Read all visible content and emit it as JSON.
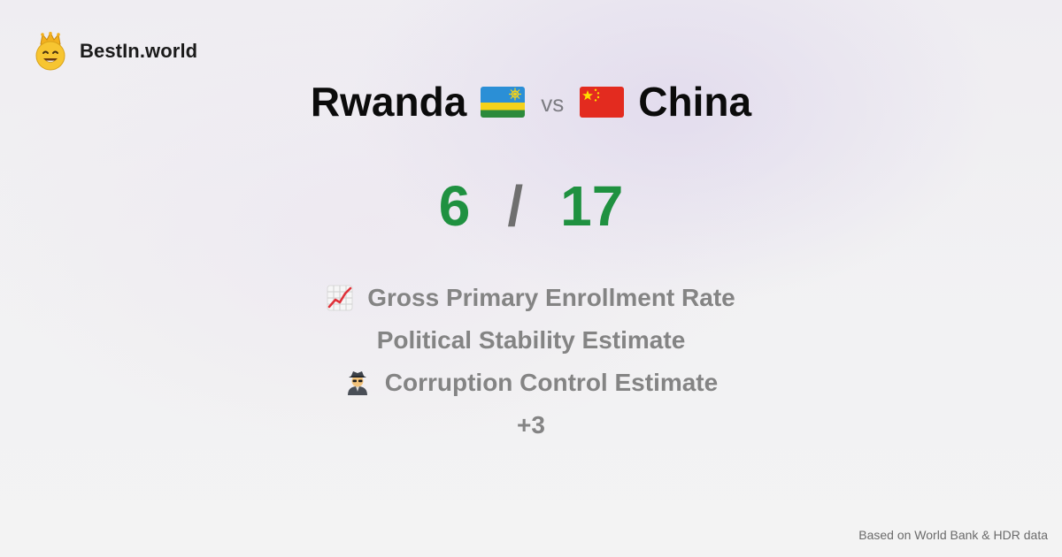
{
  "brand": {
    "name": "BestIn.world",
    "logo_icon": "crown-smiley-icon"
  },
  "comparison": {
    "left": {
      "name": "Rwanda",
      "flag_icon": "rwanda-flag-icon"
    },
    "right": {
      "name": "China",
      "flag_icon": "china-flag-icon"
    },
    "vs_label": "vs"
  },
  "score": {
    "left": "6",
    "separator": "/",
    "right": "17",
    "color": "#1f9140"
  },
  "metrics": [
    {
      "label": "Gross Primary Enrollment Rate",
      "icon": "chart-increasing-icon"
    },
    {
      "label": "Political Stability Estimate",
      "icon": ""
    },
    {
      "label": "Corruption Control Estimate",
      "icon": "detective-icon"
    }
  ],
  "more_label": "+3",
  "footer": {
    "source": "Based on World Bank & HDR data"
  },
  "colors": {
    "score_green": "#1f9140",
    "metric_gray": "#848484",
    "background": "#f1f0f3"
  }
}
